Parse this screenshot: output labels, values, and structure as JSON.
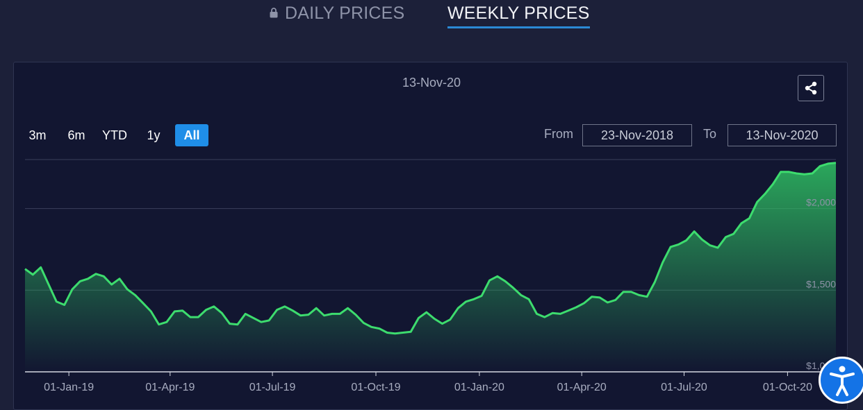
{
  "tabs": {
    "daily_label": "DAILY PRICES",
    "weekly_label": "WEEKLY PRICES",
    "active": "WEEKLY PRICES"
  },
  "as_of_date": "13-Nov-20",
  "range_buttons": [
    "3m",
    "6m",
    "YTD",
    "1y",
    "All"
  ],
  "active_range": "All",
  "date_range": {
    "from_label": "From",
    "from_value": "23-Nov-2018",
    "to_label": "To",
    "to_value": "13-Nov-2020"
  },
  "colors": {
    "background": "#1c2039",
    "panel": "#121631",
    "line": "#3ddc6e",
    "accent": "#1f8ee8"
  },
  "chart_data": {
    "type": "area",
    "title": "",
    "xlabel": "",
    "ylabel": "",
    "ylim": [
      1000,
      2300
    ],
    "y_ticks": [
      1000,
      1500,
      2000
    ],
    "y_tick_labels": [
      "$1,000",
      "$1,500",
      "$2,000"
    ],
    "x_ticks": [
      "2019-01-01",
      "2019-04-01",
      "2019-07-01",
      "2019-10-01",
      "2020-01-01",
      "2020-04-01",
      "2020-07-01",
      "2020-10-01"
    ],
    "x_tick_labels": [
      "01-Jan-19",
      "01-Apr-19",
      "01-Jul-19",
      "01-Oct-19",
      "01-Jan-20",
      "01-Apr-20",
      "01-Jul-20",
      "01-Oct-20"
    ],
    "grid": true,
    "series": [
      {
        "x": [
          "2018-11-23",
          "2018-11-30",
          "2018-12-07",
          "2018-12-14",
          "2018-12-21",
          "2018-12-28",
          "2019-01-04",
          "2019-01-11",
          "2019-01-18",
          "2019-01-25",
          "2019-02-01",
          "2019-02-08",
          "2019-02-15",
          "2019-02-22",
          "2019-03-01",
          "2019-03-08",
          "2019-03-15",
          "2019-03-22",
          "2019-03-29",
          "2019-04-05",
          "2019-04-12",
          "2019-04-19",
          "2019-04-26",
          "2019-05-03",
          "2019-05-10",
          "2019-05-17",
          "2019-05-24",
          "2019-05-31",
          "2019-06-07",
          "2019-06-14",
          "2019-06-21",
          "2019-06-28",
          "2019-07-05",
          "2019-07-12",
          "2019-07-19",
          "2019-07-26",
          "2019-08-02",
          "2019-08-09",
          "2019-08-16",
          "2019-08-23",
          "2019-08-30",
          "2019-09-06",
          "2019-09-13",
          "2019-09-20",
          "2019-09-27",
          "2019-10-04",
          "2019-10-11",
          "2019-10-18",
          "2019-10-25",
          "2019-11-01",
          "2019-11-08",
          "2019-11-15",
          "2019-11-22",
          "2019-11-29",
          "2019-12-06",
          "2019-12-13",
          "2019-12-20",
          "2019-12-27",
          "2020-01-03",
          "2020-01-10",
          "2020-01-17",
          "2020-01-24",
          "2020-01-31",
          "2020-02-07",
          "2020-02-14",
          "2020-02-21",
          "2020-02-28",
          "2020-03-06",
          "2020-03-13",
          "2020-03-20",
          "2020-03-27",
          "2020-04-03",
          "2020-04-10",
          "2020-04-17",
          "2020-04-24",
          "2020-05-01",
          "2020-05-08",
          "2020-05-15",
          "2020-05-22",
          "2020-05-29",
          "2020-06-05",
          "2020-06-12",
          "2020-06-19",
          "2020-06-26",
          "2020-07-03",
          "2020-07-10",
          "2020-07-17",
          "2020-07-24",
          "2020-07-31",
          "2020-08-07",
          "2020-08-14",
          "2020-08-21",
          "2020-08-28",
          "2020-09-04",
          "2020-09-11",
          "2020-09-18",
          "2020-09-25",
          "2020-10-02",
          "2020-10-09",
          "2020-10-16",
          "2020-10-23",
          "2020-10-30",
          "2020-11-06",
          "2020-11-13"
        ],
        "values": [
          1630,
          1595,
          1640,
          1535,
          1430,
          1410,
          1505,
          1555,
          1570,
          1600,
          1585,
          1535,
          1570,
          1505,
          1470,
          1420,
          1370,
          1290,
          1305,
          1370,
          1375,
          1335,
          1335,
          1380,
          1400,
          1360,
          1295,
          1290,
          1355,
          1330,
          1305,
          1315,
          1380,
          1400,
          1375,
          1345,
          1350,
          1390,
          1345,
          1355,
          1355,
          1390,
          1350,
          1300,
          1275,
          1265,
          1240,
          1235,
          1240,
          1245,
          1330,
          1365,
          1325,
          1295,
          1320,
          1390,
          1430,
          1445,
          1465,
          1560,
          1585,
          1555,
          1515,
          1470,
          1445,
          1355,
          1335,
          1360,
          1355,
          1375,
          1395,
          1420,
          1460,
          1455,
          1425,
          1440,
          1490,
          1490,
          1470,
          1460,
          1550,
          1670,
          1765,
          1780,
          1805,
          1860,
          1810,
          1775,
          1760,
          1825,
          1845,
          1910,
          1940,
          2040,
          2090,
          2150,
          2225,
          2225,
          2215,
          2210,
          2215,
          2260,
          2275,
          2280
        ]
      }
    ]
  }
}
